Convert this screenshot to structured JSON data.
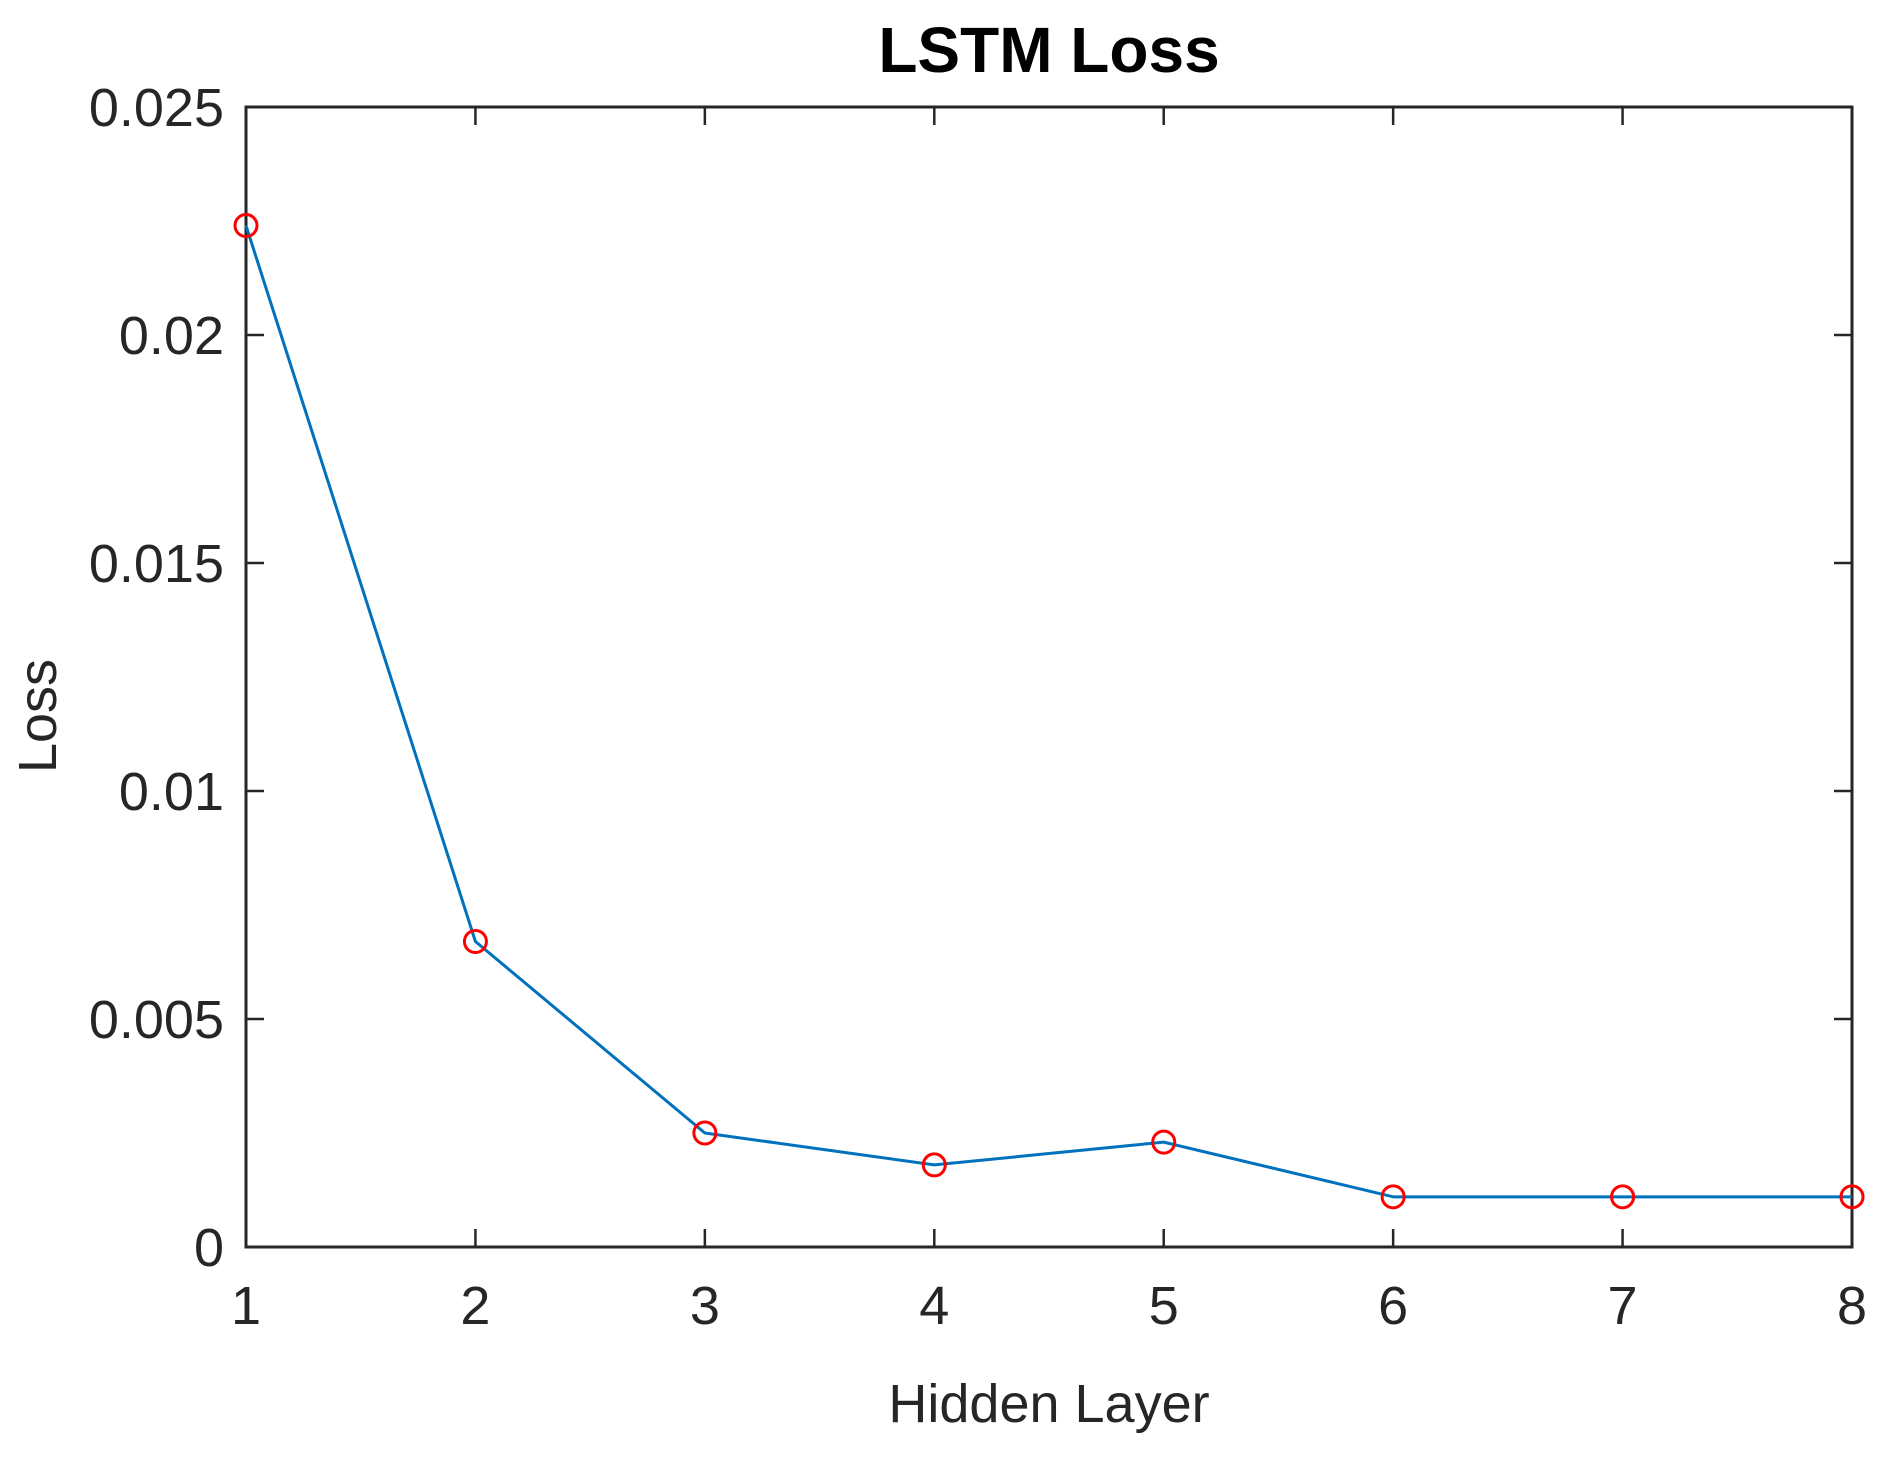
{
  "chart_data": {
    "type": "line",
    "title": "LSTM Loss",
    "xlabel": "Hidden Layer",
    "ylabel": "Loss",
    "x": [
      1,
      2,
      3,
      4,
      5,
      6,
      7,
      8
    ],
    "series": [
      {
        "values": [
          0.0224,
          0.0067,
          0.0025,
          0.0018,
          0.0023,
          0.0011,
          0.0011,
          0.0011
        ]
      }
    ],
    "xlim": [
      1,
      8
    ],
    "ylim": [
      0,
      0.025
    ],
    "xticks": [
      1,
      2,
      3,
      4,
      5,
      6,
      7,
      8
    ],
    "xtick_labels": [
      "1",
      "2",
      "3",
      "4",
      "5",
      "6",
      "7",
      "8"
    ],
    "yticks": [
      0,
      0.005,
      0.01,
      0.015,
      0.02,
      0.025
    ],
    "ytick_labels": [
      "0",
      "0.005",
      "0.01",
      "0.015",
      "0.02",
      "0.025"
    ],
    "grid": false,
    "line_color": "#0072BD",
    "marker": "circle",
    "marker_color": "#FF0000"
  }
}
